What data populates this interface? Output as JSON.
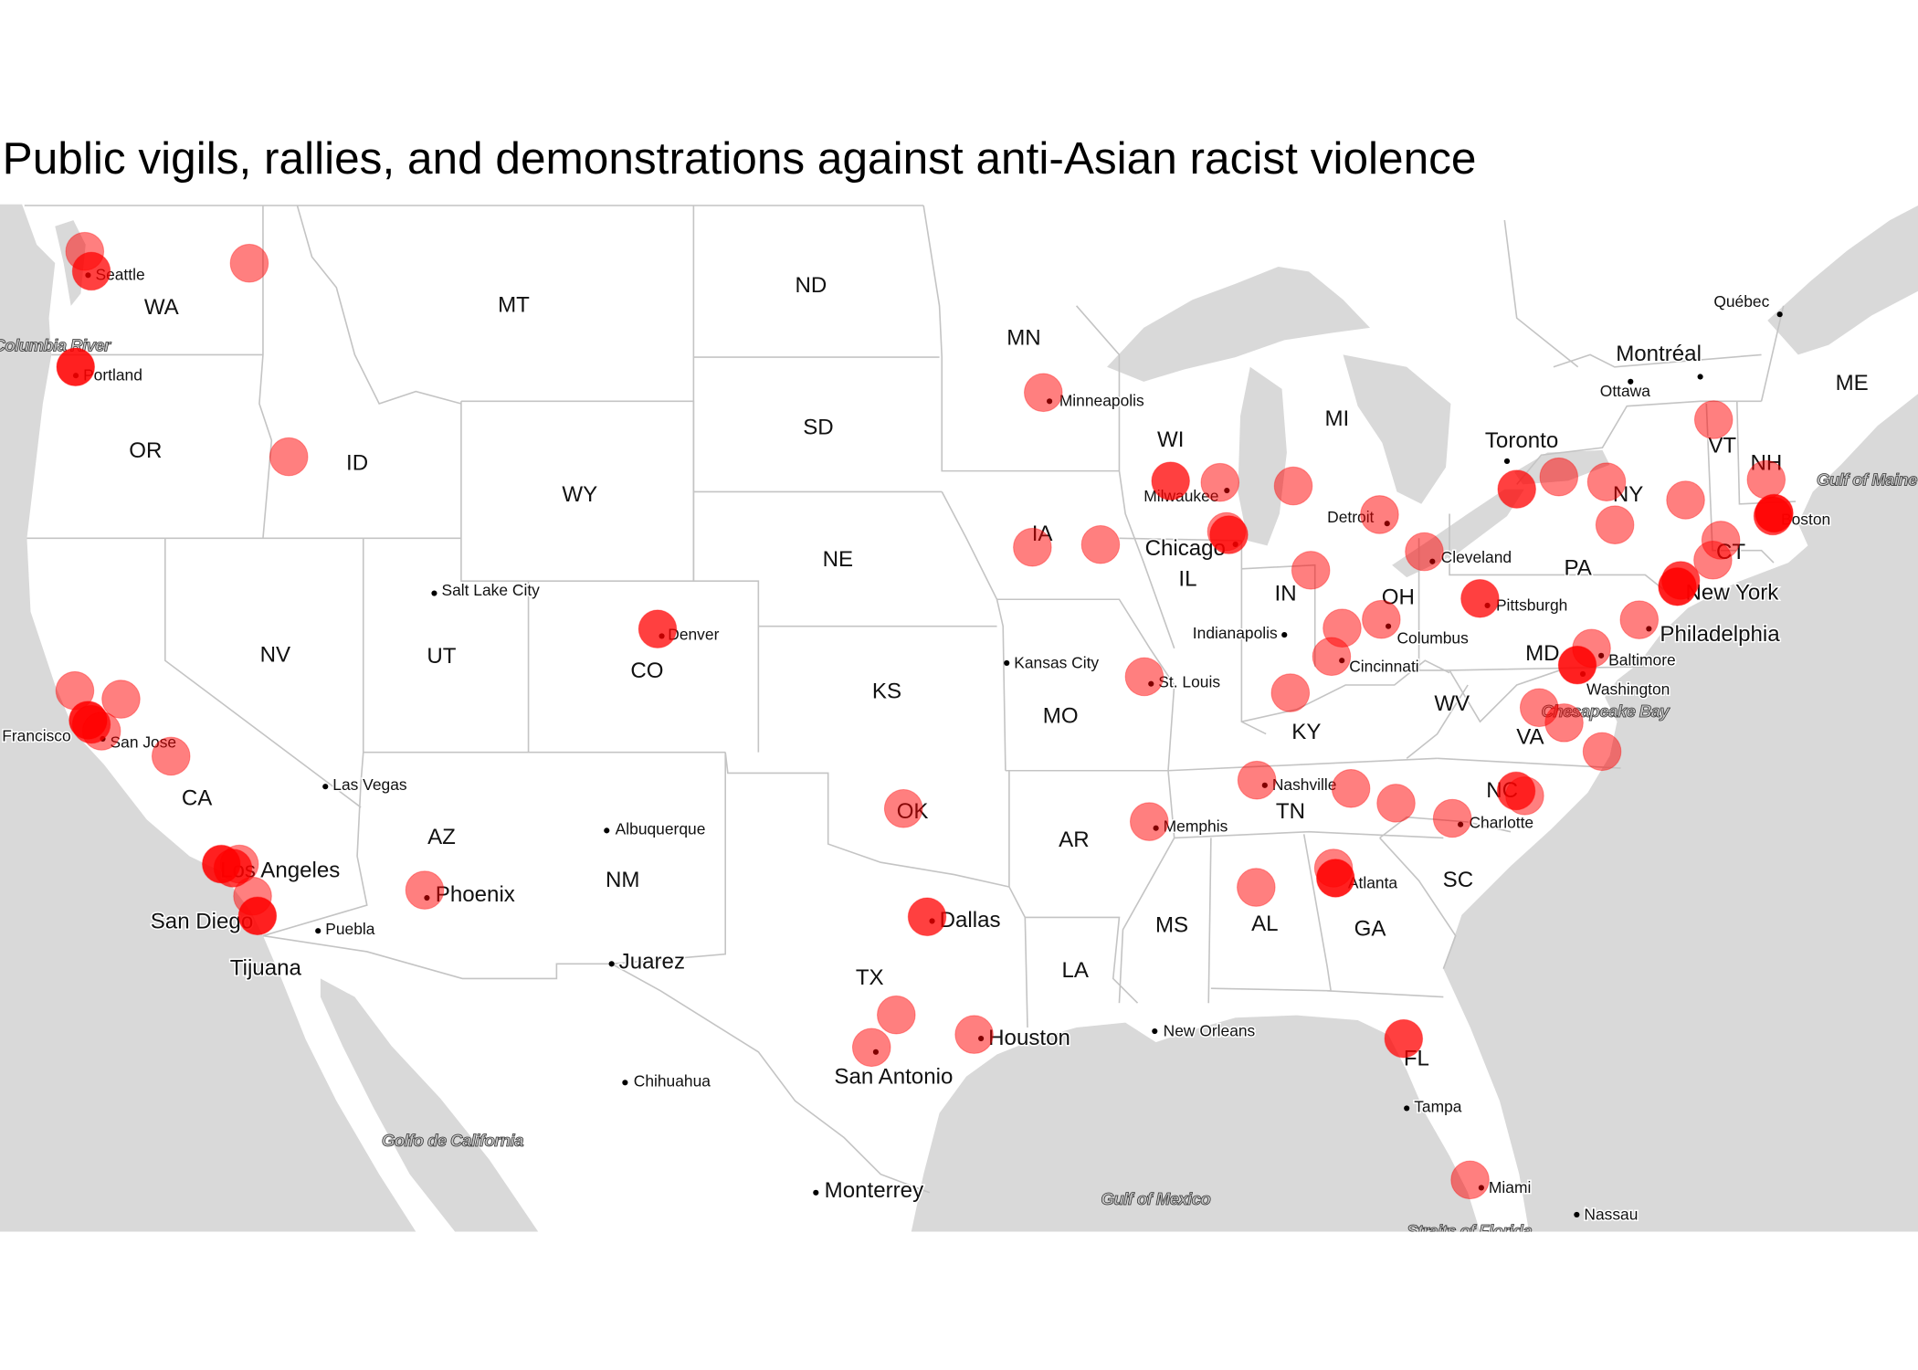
{
  "title": "Public vigils, rallies, and demonstrations against anti-Asian racist violence",
  "map": {
    "colors": {
      "ocean": "#d9d9d9",
      "land": "#ffffff",
      "borders": "#c4c4c4",
      "marker": "#ff0000"
    },
    "marker_opacity_per_event": 0.5,
    "states": [
      "WA",
      "MT",
      "ND",
      "MN",
      "OR",
      "ID",
      "SD",
      "WY",
      "WI",
      "MI",
      "NE",
      "IA",
      "IL",
      "IN",
      "OH",
      "PA",
      "NY",
      "VT",
      "NH",
      "ME",
      "CT",
      "NV",
      "UT",
      "CO",
      "KS",
      "MO",
      "KY",
      "WV",
      "VA",
      "MD",
      "NC",
      "TN",
      "AR",
      "OK",
      "CA",
      "AZ",
      "NM",
      "TX",
      "LA",
      "MS",
      "AL",
      "GA",
      "SC",
      "FL"
    ],
    "cities": [
      "Seattle",
      "Portland",
      "Minneapolis",
      "Milwaukee",
      "Chicago",
      "Detroit",
      "Toronto",
      "Montréal",
      "Ottawa",
      "Québec",
      "Boston",
      "New York",
      "Philadelphia",
      "Baltimore",
      "Washington",
      "Cleveland",
      "Pittsburgh",
      "Columbus",
      "Indianapolis",
      "Cincinnati",
      "Kansas City",
      "St. Louis",
      "Nashville",
      "Memphis",
      "Charlotte",
      "Atlanta",
      "New Orleans",
      "Tampa",
      "Miami",
      "Nassau",
      "Houston",
      "Dallas",
      "San Antonio",
      "Monterrey",
      "Chihuahua",
      "Juarez",
      "Albuquerque",
      "Phoenix",
      "Las Vegas",
      "Salt Lake City",
      "Denver",
      "Los Angeles",
      "San Diego",
      "Tijuana",
      "Puebla",
      "San Jose",
      "San Francisco"
    ],
    "water": [
      "Columbia River",
      "Gulf of Maine",
      "Chesapeake Bay",
      "Golfo de California",
      "Gulf of Mexico",
      "Straits of Florida"
    ],
    "events": [
      {
        "lat": 47.9,
        "lon": -122.4,
        "count": 1
      },
      {
        "lat": 47.5,
        "lon": -122.2,
        "count": 2
      },
      {
        "lat": 47.66,
        "lon": -117.4,
        "count": 1
      },
      {
        "lat": 45.52,
        "lon": -122.68,
        "count": 3
      },
      {
        "lat": 43.6,
        "lon": -116.2,
        "count": 1
      },
      {
        "lat": 38.3,
        "lon": -122.7,
        "count": 1
      },
      {
        "lat": 38.1,
        "lon": -121.3,
        "count": 1
      },
      {
        "lat": 37.6,
        "lon": -122.3,
        "count": 3
      },
      {
        "lat": 37.5,
        "lon": -122.2,
        "count": 2
      },
      {
        "lat": 37.34,
        "lon": -121.89,
        "count": 1
      },
      {
        "lat": 36.74,
        "lon": -119.78,
        "count": 1
      },
      {
        "lat": 34.1,
        "lon": -118.25,
        "count": 3
      },
      {
        "lat": 34.0,
        "lon": -117.9,
        "count": 2
      },
      {
        "lat": 34.1,
        "lon": -117.7,
        "count": 1
      },
      {
        "lat": 33.3,
        "lon": -117.3,
        "count": 1
      },
      {
        "lat": 32.8,
        "lon": -117.15,
        "count": 3
      },
      {
        "lat": 33.45,
        "lon": -112.07,
        "count": 1
      },
      {
        "lat": 39.74,
        "lon": -104.99,
        "count": 2
      },
      {
        "lat": 35.47,
        "lon": -97.52,
        "count": 1
      },
      {
        "lat": 32.78,
        "lon": -96.8,
        "count": 2
      },
      {
        "lat": 30.27,
        "lon": -97.74,
        "count": 1
      },
      {
        "lat": 29.42,
        "lon": -98.49,
        "count": 1
      },
      {
        "lat": 29.76,
        "lon": -95.37,
        "count": 1
      },
      {
        "lat": 44.98,
        "lon": -93.27,
        "count": 1
      },
      {
        "lat": 41.6,
        "lon": -93.6,
        "count": 1
      },
      {
        "lat": 41.66,
        "lon": -91.53,
        "count": 1
      },
      {
        "lat": 43.07,
        "lon": -89.4,
        "count": 2
      },
      {
        "lat": 43.04,
        "lon": -87.9,
        "count": 1
      },
      {
        "lat": 41.95,
        "lon": -87.7,
        "count": 1
      },
      {
        "lat": 41.88,
        "lon": -87.63,
        "count": 2
      },
      {
        "lat": 42.96,
        "lon": -85.67,
        "count": 1
      },
      {
        "lat": 42.33,
        "lon": -83.05,
        "count": 1
      },
      {
        "lat": 41.08,
        "lon": -85.14,
        "count": 1
      },
      {
        "lat": 41.5,
        "lon": -81.69,
        "count": 1
      },
      {
        "lat": 40.44,
        "lon": -80.0,
        "count": 2
      },
      {
        "lat": 42.89,
        "lon": -78.88,
        "count": 2
      },
      {
        "lat": 43.16,
        "lon": -77.6,
        "count": 1
      },
      {
        "lat": 43.05,
        "lon": -76.15,
        "count": 1
      },
      {
        "lat": 42.1,
        "lon": -75.9,
        "count": 1
      },
      {
        "lat": 42.65,
        "lon": -73.75,
        "count": 1
      },
      {
        "lat": 44.4,
        "lon": -72.9,
        "count": 1
      },
      {
        "lat": 43.1,
        "lon": -71.3,
        "count": 1
      },
      {
        "lat": 42.36,
        "lon": -71.06,
        "count": 3
      },
      {
        "lat": 42.3,
        "lon": -71.1,
        "count": 2
      },
      {
        "lat": 41.76,
        "lon": -72.68,
        "count": 1
      },
      {
        "lat": 41.31,
        "lon": -72.92,
        "count": 1
      },
      {
        "lat": 40.85,
        "lon": -73.9,
        "count": 2
      },
      {
        "lat": 40.71,
        "lon": -74.0,
        "count": 3
      },
      {
        "lat": 39.95,
        "lon": -75.16,
        "count": 1
      },
      {
        "lat": 38.9,
        "lon": -77.04,
        "count": 3
      },
      {
        "lat": 39.29,
        "lon": -76.61,
        "count": 1
      },
      {
        "lat": 37.9,
        "lon": -78.2,
        "count": 1
      },
      {
        "lat": 37.54,
        "lon": -77.44,
        "count": 1
      },
      {
        "lat": 36.85,
        "lon": -76.29,
        "count": 1
      },
      {
        "lat": 39.76,
        "lon": -84.19,
        "count": 1
      },
      {
        "lat": 39.96,
        "lon": -83.0,
        "count": 1
      },
      {
        "lat": 39.1,
        "lon": -84.51,
        "count": 1
      },
      {
        "lat": 38.25,
        "lon": -85.76,
        "count": 1
      },
      {
        "lat": 38.63,
        "lon": -90.2,
        "count": 1
      },
      {
        "lat": 36.16,
        "lon": -86.78,
        "count": 1
      },
      {
        "lat": 35.96,
        "lon": -83.92,
        "count": 1
      },
      {
        "lat": 35.6,
        "lon": -82.55,
        "count": 1
      },
      {
        "lat": 35.23,
        "lon": -80.84,
        "count": 1
      },
      {
        "lat": 35.9,
        "lon": -78.9,
        "count": 2
      },
      {
        "lat": 35.78,
        "lon": -78.64,
        "count": 1
      },
      {
        "lat": 35.15,
        "lon": -90.05,
        "count": 1
      },
      {
        "lat": 33.52,
        "lon": -86.8,
        "count": 1
      },
      {
        "lat": 34.0,
        "lon": -84.45,
        "count": 1
      },
      {
        "lat": 33.75,
        "lon": -84.39,
        "count": 3
      },
      {
        "lat": 29.65,
        "lon": -82.32,
        "count": 2
      },
      {
        "lat": 25.9,
        "lon": -80.3,
        "count": 1
      }
    ]
  }
}
